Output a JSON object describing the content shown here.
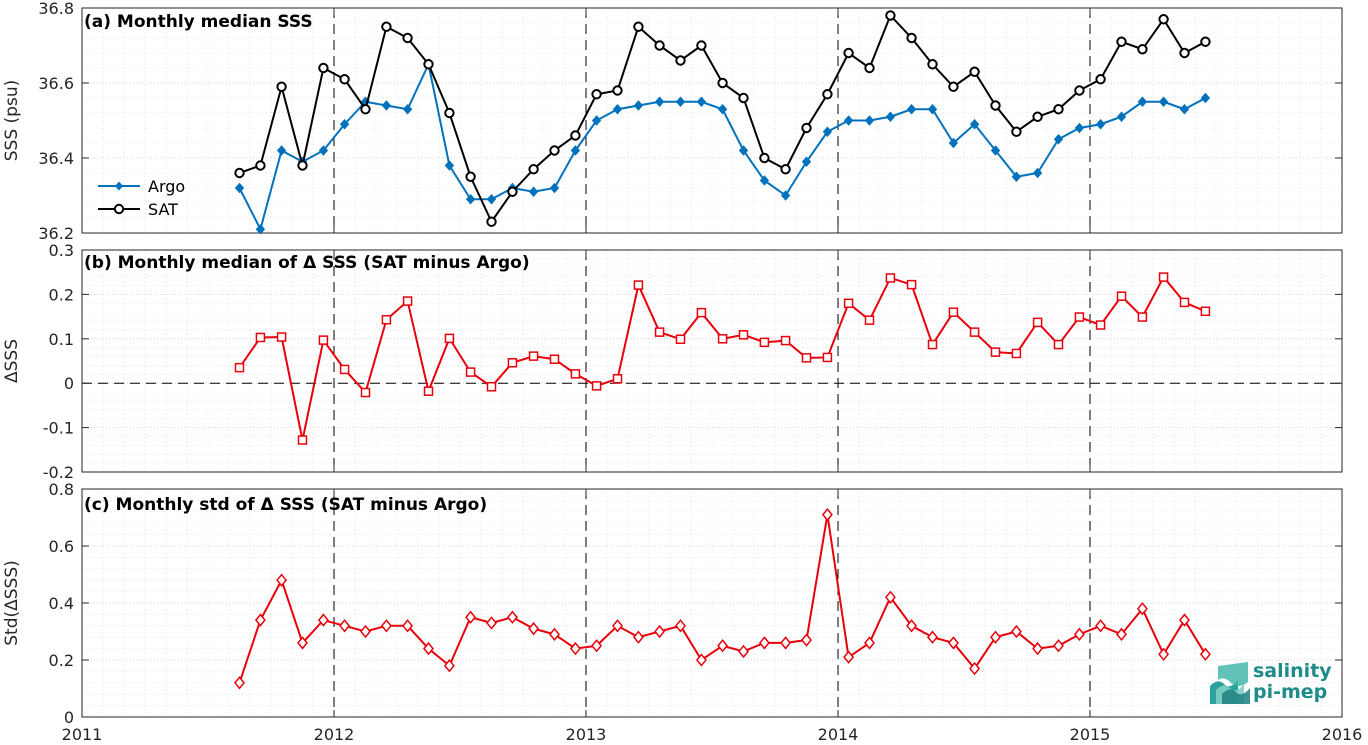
{
  "colors": {
    "argo": "#0072bd",
    "sat": "#000000",
    "delta": "#e8000b",
    "grid": "#dcdcdc",
    "axis": "#262626"
  },
  "x_axis": {
    "ticks": [
      "2011",
      "2012",
      "2013",
      "2014",
      "2015",
      "2016"
    ],
    "range": [
      2011,
      2016
    ]
  },
  "logo": {
    "line1": "salinity",
    "line2": "pi-mep"
  },
  "chart_data": [
    {
      "type": "line",
      "title": "(a) Monthly median SSS",
      "ylabel": "SSS (psu)",
      "ylim": [
        36.2,
        36.8
      ],
      "yticks": [
        "36.2",
        "36.4",
        "36.6",
        "36.8"
      ],
      "ytick_values": [
        36.2,
        36.4,
        36.6,
        36.8
      ],
      "grid": true,
      "legend": "left",
      "x": [
        2011.625,
        2011.708,
        2011.792,
        2011.875,
        2011.958,
        2012.042,
        2012.125,
        2012.208,
        2012.292,
        2012.375,
        2012.458,
        2012.542,
        2012.625,
        2012.708,
        2012.792,
        2012.875,
        2012.958,
        2013.042,
        2013.125,
        2013.208,
        2013.292,
        2013.375,
        2013.458,
        2013.542,
        2013.625,
        2013.708,
        2013.792,
        2013.875,
        2013.958,
        2014.042,
        2014.125,
        2014.208,
        2014.292,
        2014.375,
        2014.458,
        2014.542,
        2014.625,
        2014.708,
        2014.792,
        2014.875,
        2014.958,
        2015.042,
        2015.125,
        2015.208,
        2015.292,
        2015.375,
        2015.458
      ],
      "series": [
        {
          "name": "Argo",
          "marker": "diamond",
          "values": [
            36.32,
            36.21,
            36.42,
            36.39,
            36.42,
            36.49,
            36.55,
            36.54,
            36.53,
            36.65,
            36.38,
            36.29,
            36.29,
            36.32,
            36.31,
            36.32,
            36.42,
            36.5,
            36.53,
            36.54,
            36.55,
            36.55,
            36.55,
            36.53,
            36.42,
            36.34,
            36.3,
            36.39,
            36.47,
            36.5,
            36.5,
            36.51,
            36.53,
            36.53,
            36.44,
            36.49,
            36.42,
            36.35,
            36.36,
            36.45,
            36.48,
            36.49,
            36.51,
            36.55,
            36.55,
            36.53,
            36.56
          ]
        },
        {
          "name": "SAT",
          "marker": "circle",
          "values": [
            36.36,
            36.38,
            36.59,
            36.38,
            36.64,
            36.61,
            36.53,
            36.75,
            36.72,
            36.65,
            36.52,
            36.35,
            36.23,
            36.31,
            36.37,
            36.42,
            36.46,
            36.57,
            36.58,
            36.75,
            36.7,
            36.66,
            36.7,
            36.6,
            36.56,
            36.4,
            36.37,
            36.48,
            36.57,
            36.68,
            36.64,
            36.78,
            36.72,
            36.65,
            36.59,
            36.63,
            36.54,
            36.47,
            36.51,
            36.53,
            36.58,
            36.61,
            36.71,
            36.69,
            36.77,
            36.68,
            36.71
          ]
        }
      ]
    },
    {
      "type": "line",
      "title": "(b) Monthly median of Δ SSS (SAT minus Argo)",
      "ylabel": "ΔSSS",
      "ylim": [
        -0.2,
        0.3
      ],
      "yticks": [
        "-0.2",
        "-0.1",
        "0",
        "0.1",
        "0.2",
        "0.3"
      ],
      "ytick_values": [
        -0.2,
        -0.1,
        0,
        0.1,
        0.2,
        0.3
      ],
      "grid": true,
      "x": [
        2011.625,
        2011.708,
        2011.792,
        2011.875,
        2011.958,
        2012.042,
        2012.125,
        2012.208,
        2012.292,
        2012.375,
        2012.458,
        2012.542,
        2012.625,
        2012.708,
        2012.792,
        2012.875,
        2012.958,
        2013.042,
        2013.125,
        2013.208,
        2013.292,
        2013.375,
        2013.458,
        2013.542,
        2013.625,
        2013.708,
        2013.792,
        2013.875,
        2013.958,
        2014.042,
        2014.125,
        2014.208,
        2014.292,
        2014.375,
        2014.458,
        2014.542,
        2014.625,
        2014.708,
        2014.792,
        2014.875,
        2014.958,
        2015.042,
        2015.125,
        2015.208,
        2015.292,
        2015.375,
        2015.458
      ],
      "series": [
        {
          "marker": "square",
          "values": [
            0.035,
            0.103,
            0.104,
            -0.128,
            0.097,
            0.031,
            -0.021,
            0.143,
            0.185,
            -0.018,
            0.101,
            0.025,
            -0.008,
            0.046,
            0.061,
            0.054,
            0.021,
            -0.006,
            0.01,
            0.221,
            0.115,
            0.099,
            0.159,
            0.1,
            0.109,
            0.092,
            0.096,
            0.057,
            0.058,
            0.18,
            0.142,
            0.237,
            0.222,
            0.087,
            0.16,
            0.115,
            0.07,
            0.067,
            0.137,
            0.087,
            0.149,
            0.131,
            0.196,
            0.149,
            0.239,
            0.182,
            0.162
          ]
        }
      ]
    },
    {
      "type": "line",
      "title": "(c) Monthly std of Δ SSS (SAT minus Argo)",
      "ylabel": "Std(ΔSSS)",
      "ylim": [
        0,
        0.8
      ],
      "yticks": [
        "0",
        "0.2",
        "0.4",
        "0.6",
        "0.8"
      ],
      "ytick_values": [
        0,
        0.2,
        0.4,
        0.6,
        0.8
      ],
      "grid": true,
      "x": [
        2011.625,
        2011.708,
        2011.792,
        2011.875,
        2011.958,
        2012.042,
        2012.125,
        2012.208,
        2012.292,
        2012.375,
        2012.458,
        2012.542,
        2012.625,
        2012.708,
        2012.792,
        2012.875,
        2012.958,
        2013.042,
        2013.125,
        2013.208,
        2013.292,
        2013.375,
        2013.458,
        2013.542,
        2013.625,
        2013.708,
        2013.792,
        2013.875,
        2013.958,
        2014.042,
        2014.125,
        2014.208,
        2014.292,
        2014.375,
        2014.458,
        2014.542,
        2014.625,
        2014.708,
        2014.792,
        2014.875,
        2014.958,
        2015.042,
        2015.125,
        2015.208,
        2015.292,
        2015.375,
        2015.458
      ],
      "series": [
        {
          "marker": "diamond",
          "values": [
            0.12,
            0.34,
            0.48,
            0.26,
            0.34,
            0.32,
            0.3,
            0.32,
            0.32,
            0.24,
            0.18,
            0.35,
            0.33,
            0.35,
            0.31,
            0.29,
            0.24,
            0.25,
            0.32,
            0.28,
            0.3,
            0.32,
            0.2,
            0.25,
            0.23,
            0.26,
            0.26,
            0.27,
            0.71,
            0.21,
            0.26,
            0.42,
            0.32,
            0.28,
            0.26,
            0.17,
            0.28,
            0.3,
            0.24,
            0.25,
            0.29,
            0.32,
            0.29,
            0.38,
            0.22,
            0.34,
            0.22
          ]
        }
      ]
    }
  ]
}
